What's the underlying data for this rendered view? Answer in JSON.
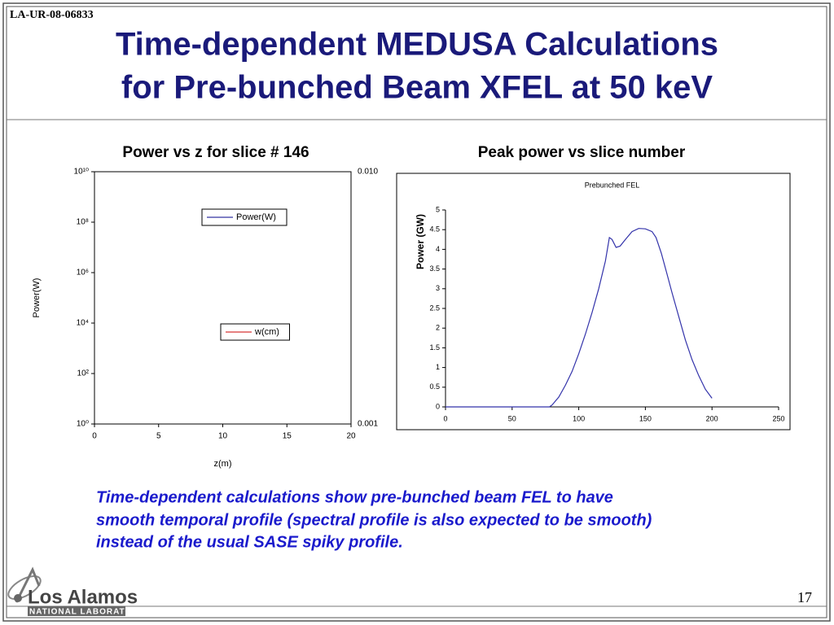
{
  "report_id": "LA-UR-08-06833",
  "header": {
    "title_lines": [
      "Time-dependent MEDUSA Calculations",
      "for Pre-bunched Beam XFEL at 50 keV"
    ]
  },
  "chart_data": [
    {
      "type": "line",
      "title": "Power vs z for slice # 146",
      "xlabel": "z(m)",
      "ylabel": "Power(W)",
      "xlim": [
        0,
        20
      ],
      "xticks": [
        0,
        5,
        10,
        15,
        20
      ],
      "ylim": [
        1,
        10000000000
      ],
      "ylog": true,
      "yticks": [
        {
          "value": 1,
          "label": "10⁰"
        },
        {
          "value": 100,
          "label": "10²"
        },
        {
          "value": 10000,
          "label": "10⁴"
        },
        {
          "value": 1000000,
          "label": "10⁶"
        },
        {
          "value": 100000000,
          "label": "10⁸"
        },
        {
          "value": 10000000000,
          "label": "10¹⁰"
        }
      ],
      "y2lim": [
        0.001,
        0.01
      ],
      "y2ticks": [
        0.001,
        {
          "value": 0.01,
          "label": "0.010"
        }
      ],
      "x": [],
      "series": [
        {
          "name": "Power(W)",
          "color": "#00008b",
          "values": []
        },
        {
          "name": "w(cm)",
          "color": "#cc0000",
          "values": [],
          "axis": "y2"
        }
      ]
    },
    {
      "type": "line",
      "title": "Peak power vs slice number",
      "subtitle": "Prebunched FEL",
      "ylabel": "Power (GW)",
      "xlim": [
        0,
        250
      ],
      "xticks": [
        0,
        50,
        100,
        150,
        200,
        250
      ],
      "ylim": [
        0,
        5
      ],
      "yticks": [
        0,
        0.5,
        1,
        1.5,
        2,
        2.5,
        3,
        3.5,
        4,
        4.5,
        5
      ],
      "x": [
        0,
        78,
        80,
        85,
        90,
        95,
        100,
        105,
        110,
        115,
        120,
        123,
        125,
        128,
        131,
        135,
        140,
        145,
        150,
        155,
        158,
        162,
        166,
        170,
        175,
        180,
        185,
        190,
        195,
        200
      ],
      "series": [
        {
          "name": "Peak power",
          "color": "#3333aa",
          "values": [
            0,
            0,
            0.05,
            0.25,
            0.55,
            0.9,
            1.35,
            1.85,
            2.4,
            3.0,
            3.7,
            4.3,
            4.25,
            4.05,
            4.08,
            4.25,
            4.45,
            4.53,
            4.52,
            4.45,
            4.3,
            3.9,
            3.4,
            2.9,
            2.3,
            1.7,
            1.2,
            0.8,
            0.45,
            0.22
          ]
        }
      ]
    }
  ],
  "caption_lines": [
    "Time-dependent calculations show pre-bunched beam FEL to have",
    "smooth temporal profile (spectral profile is also expected to be smooth)",
    "instead of the usual SASE spiky profile."
  ],
  "logo": {
    "name": "Los Alamos",
    "subtitle": "NATIONAL LABORATORY"
  },
  "page_number": "17"
}
